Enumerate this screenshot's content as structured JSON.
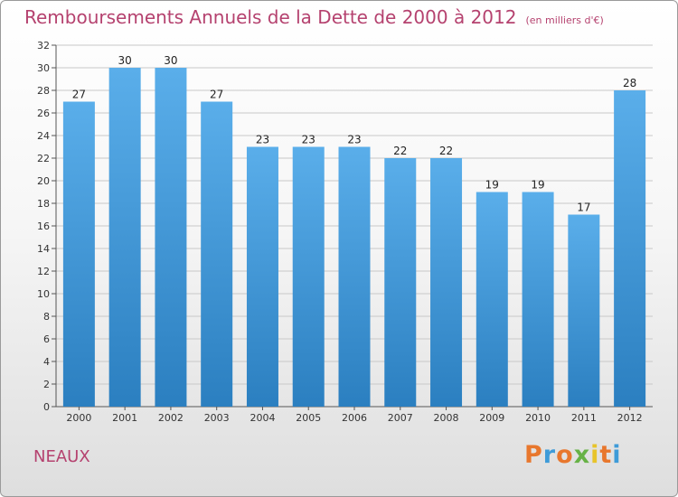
{
  "page": {
    "title": "Remboursements Annuels de la Dette de 2000 à 2012",
    "unit": "(en milliers d'€)",
    "location": "NEAUX",
    "logo": "Proxiti"
  },
  "colors": {
    "title": "#b5426f",
    "bar_top": "#5aaeea",
    "bar_bottom": "#2b7fc0",
    "grid": "#c8c8c8",
    "logo_letters": [
      "#e8772d",
      "#3e9bd8",
      "#e8772d",
      "#67b246",
      "#e8c42a",
      "#e8772d",
      "#3e9bd8"
    ]
  },
  "chart_data": {
    "type": "bar",
    "title": "Remboursements Annuels de la Dette de 2000 à 2012",
    "subtitle": "(en milliers d'€)",
    "categories": [
      "2000",
      "2001",
      "2002",
      "2003",
      "2004",
      "2005",
      "2006",
      "2007",
      "2008",
      "2009",
      "2010",
      "2011",
      "2012"
    ],
    "values": [
      27,
      30,
      30,
      27,
      23,
      23,
      23,
      22,
      22,
      19,
      19,
      17,
      28
    ],
    "xlabel": "",
    "ylabel": "",
    "ylim": [
      0,
      32
    ],
    "yticks": [
      0,
      2,
      4,
      6,
      8,
      10,
      12,
      14,
      16,
      18,
      20,
      22,
      24,
      26,
      28,
      30,
      32
    ],
    "grid": true,
    "legend": "none"
  }
}
